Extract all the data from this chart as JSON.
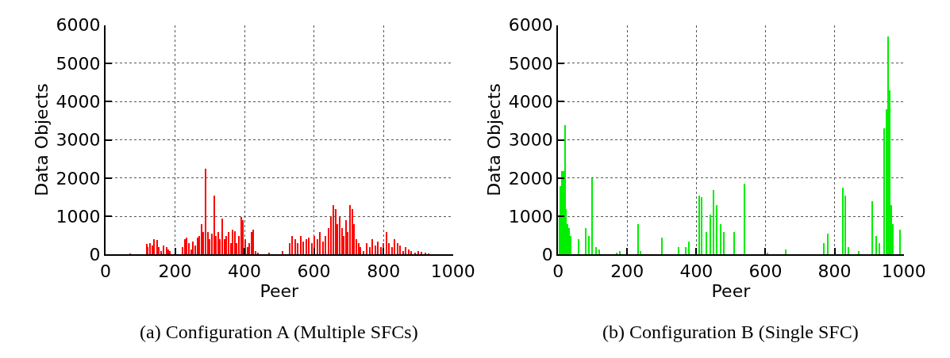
{
  "chart_data": [
    {
      "type": "bar",
      "xlabel": "Peer",
      "ylabel": "Data Objects",
      "annotations": [
        "(a) Configuration A (Multiple SFCs)"
      ],
      "color": "#ff0000",
      "xlim": [
        0,
        1000
      ],
      "ylim": [
        0,
        6000
      ],
      "xticks": [
        0,
        200,
        400,
        600,
        800,
        1000
      ],
      "yticks": [
        0,
        1000,
        2000,
        3000,
        4000,
        5000,
        6000
      ],
      "grid": true,
      "x": [
        70,
        118,
        122,
        128,
        135,
        140,
        148,
        153,
        160,
        168,
        175,
        180,
        186,
        222,
        228,
        234,
        240,
        246,
        252,
        258,
        264,
        270,
        276,
        282,
        288,
        294,
        300,
        306,
        312,
        318,
        324,
        330,
        336,
        342,
        348,
        354,
        360,
        366,
        372,
        378,
        384,
        390,
        396,
        402,
        408,
        414,
        420,
        426,
        432,
        438,
        470,
        510,
        530,
        538,
        546,
        554,
        562,
        570,
        578,
        586,
        594,
        602,
        610,
        618,
        626,
        634,
        642,
        650,
        656,
        662,
        668,
        674,
        680,
        686,
        692,
        698,
        704,
        710,
        716,
        722,
        728,
        734,
        742,
        752,
        760,
        768,
        776,
        784,
        792,
        800,
        808,
        816,
        824,
        832,
        840,
        848,
        856,
        864,
        872,
        880,
        890,
        900,
        910,
        920,
        930
      ],
      "values": [
        30,
        280,
        200,
        300,
        250,
        400,
        380,
        200,
        100,
        250,
        200,
        150,
        100,
        200,
        400,
        450,
        300,
        150,
        350,
        250,
        450,
        500,
        800,
        600,
        2250,
        600,
        400,
        550,
        1550,
        500,
        600,
        400,
        950,
        400,
        500,
        600,
        300,
        650,
        620,
        300,
        500,
        1000,
        900,
        400,
        200,
        300,
        600,
        650,
        100,
        50,
        60,
        100,
        300,
        500,
        400,
        300,
        500,
        350,
        400,
        450,
        300,
        500,
        400,
        600,
        350,
        500,
        700,
        1000,
        1300,
        1200,
        800,
        1000,
        700,
        500,
        900,
        600,
        1300,
        1200,
        800,
        400,
        300,
        200,
        100,
        300,
        200,
        400,
        250,
        350,
        200,
        300,
        600,
        300,
        200,
        400,
        300,
        250,
        100,
        200,
        150,
        100,
        50,
        100,
        80,
        50,
        30
      ]
    },
    {
      "type": "bar",
      "xlabel": "Peer",
      "ylabel": "Data Objects",
      "annotations": [
        "(b) Configuration B (Single SFC)"
      ],
      "color": "#00ee00",
      "xlim": [
        0,
        1000
      ],
      "ylim": [
        0,
        6000
      ],
      "xticks": [
        0,
        200,
        400,
        600,
        800,
        1000
      ],
      "yticks": [
        0,
        1000,
        2000,
        3000,
        4000,
        5000,
        6000
      ],
      "grid": true,
      "x": [
        4,
        8,
        12,
        16,
        20,
        24,
        28,
        32,
        36,
        60,
        80,
        90,
        100,
        110,
        120,
        170,
        180,
        232,
        240,
        300,
        350,
        370,
        380,
        410,
        416,
        430,
        440,
        450,
        460,
        470,
        480,
        510,
        540,
        606,
        660,
        770,
        780,
        825,
        832,
        840,
        870,
        910,
        920,
        930,
        945,
        950,
        955,
        960,
        965,
        970,
        990
      ],
      "values": [
        1000,
        1800,
        2200,
        2200,
        3400,
        1200,
        800,
        700,
        500,
        400,
        700,
        500,
        2000,
        200,
        150,
        50,
        100,
        800,
        100,
        450,
        200,
        200,
        350,
        1550,
        1500,
        600,
        1050,
        1700,
        1300,
        800,
        600,
        600,
        1850,
        50,
        150,
        300,
        550,
        1750,
        1550,
        200,
        100,
        1400,
        500,
        300,
        3300,
        3800,
        5700,
        4300,
        1300,
        800,
        650
      ]
    }
  ]
}
